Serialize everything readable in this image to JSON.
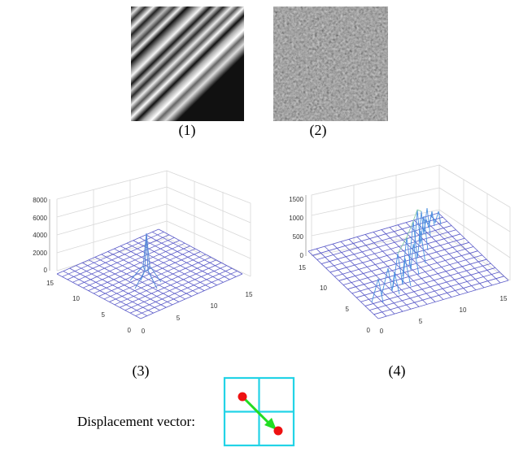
{
  "panels": [
    {
      "caption": "(1)"
    },
    {
      "caption": "(2)"
    },
    {
      "caption": "(3)",
      "z_ticks": [
        "0",
        "2000",
        "4000",
        "6000",
        "8000"
      ],
      "x_ticks": [
        "0",
        "5",
        "10",
        "15"
      ],
      "y_ticks": [
        "0",
        "5",
        "10",
        "15"
      ]
    },
    {
      "caption": "(4)",
      "z_ticks": [
        "0",
        "500",
        "1000",
        "1500"
      ],
      "x_ticks": [
        "0",
        "5",
        "10",
        "15"
      ],
      "y_ticks": [
        "0",
        "5",
        "10",
        "15"
      ]
    }
  ],
  "displacement": {
    "label": "Displacement vector:",
    "grid_color": "#22d3e6",
    "arrow_color": "#22dd22",
    "dot_color": "#ee1111"
  }
}
